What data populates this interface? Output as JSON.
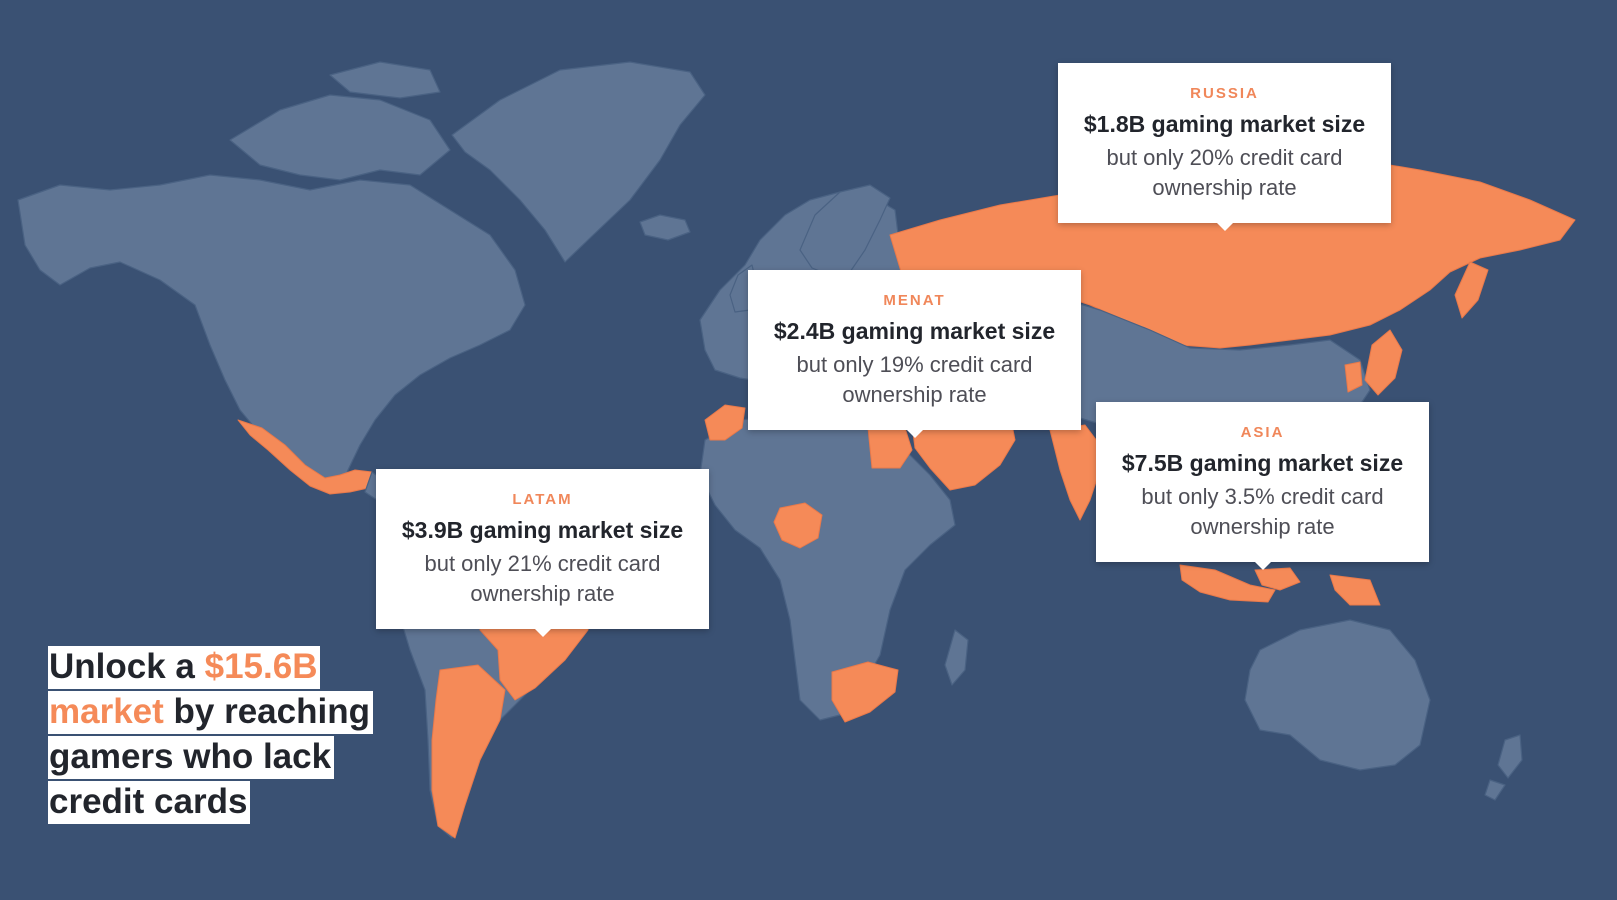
{
  "map": {
    "background_color": "#3a5173",
    "land_color": "#5f7594",
    "highlight_color": "#f58a58",
    "highlighted_regions": [
      "Russia",
      "MENAT",
      "Asia",
      "LATAM"
    ]
  },
  "callouts": {
    "russia": {
      "region": "RUSSIA",
      "headline": "$1.8B gaming market size",
      "line1": "but only 20% credit card",
      "line2": "ownership rate"
    },
    "menat": {
      "region": "MENAT",
      "headline": "$2.4B gaming market size",
      "line1": "but only 19% credit card",
      "line2": "ownership rate"
    },
    "asia": {
      "region": "ASIA",
      "headline": "$7.5B gaming market size",
      "line1": "but only 3.5% credit card",
      "line2": "ownership rate"
    },
    "latam": {
      "region": "LATAM",
      "headline": "$3.9B gaming market size",
      "line1": "but only 21% credit card",
      "line2": "ownership rate"
    }
  },
  "headline": {
    "prefix": "Unlock a ",
    "highlight": "$15.6B market",
    "suffix": " by reaching gamers who lack credit cards"
  }
}
